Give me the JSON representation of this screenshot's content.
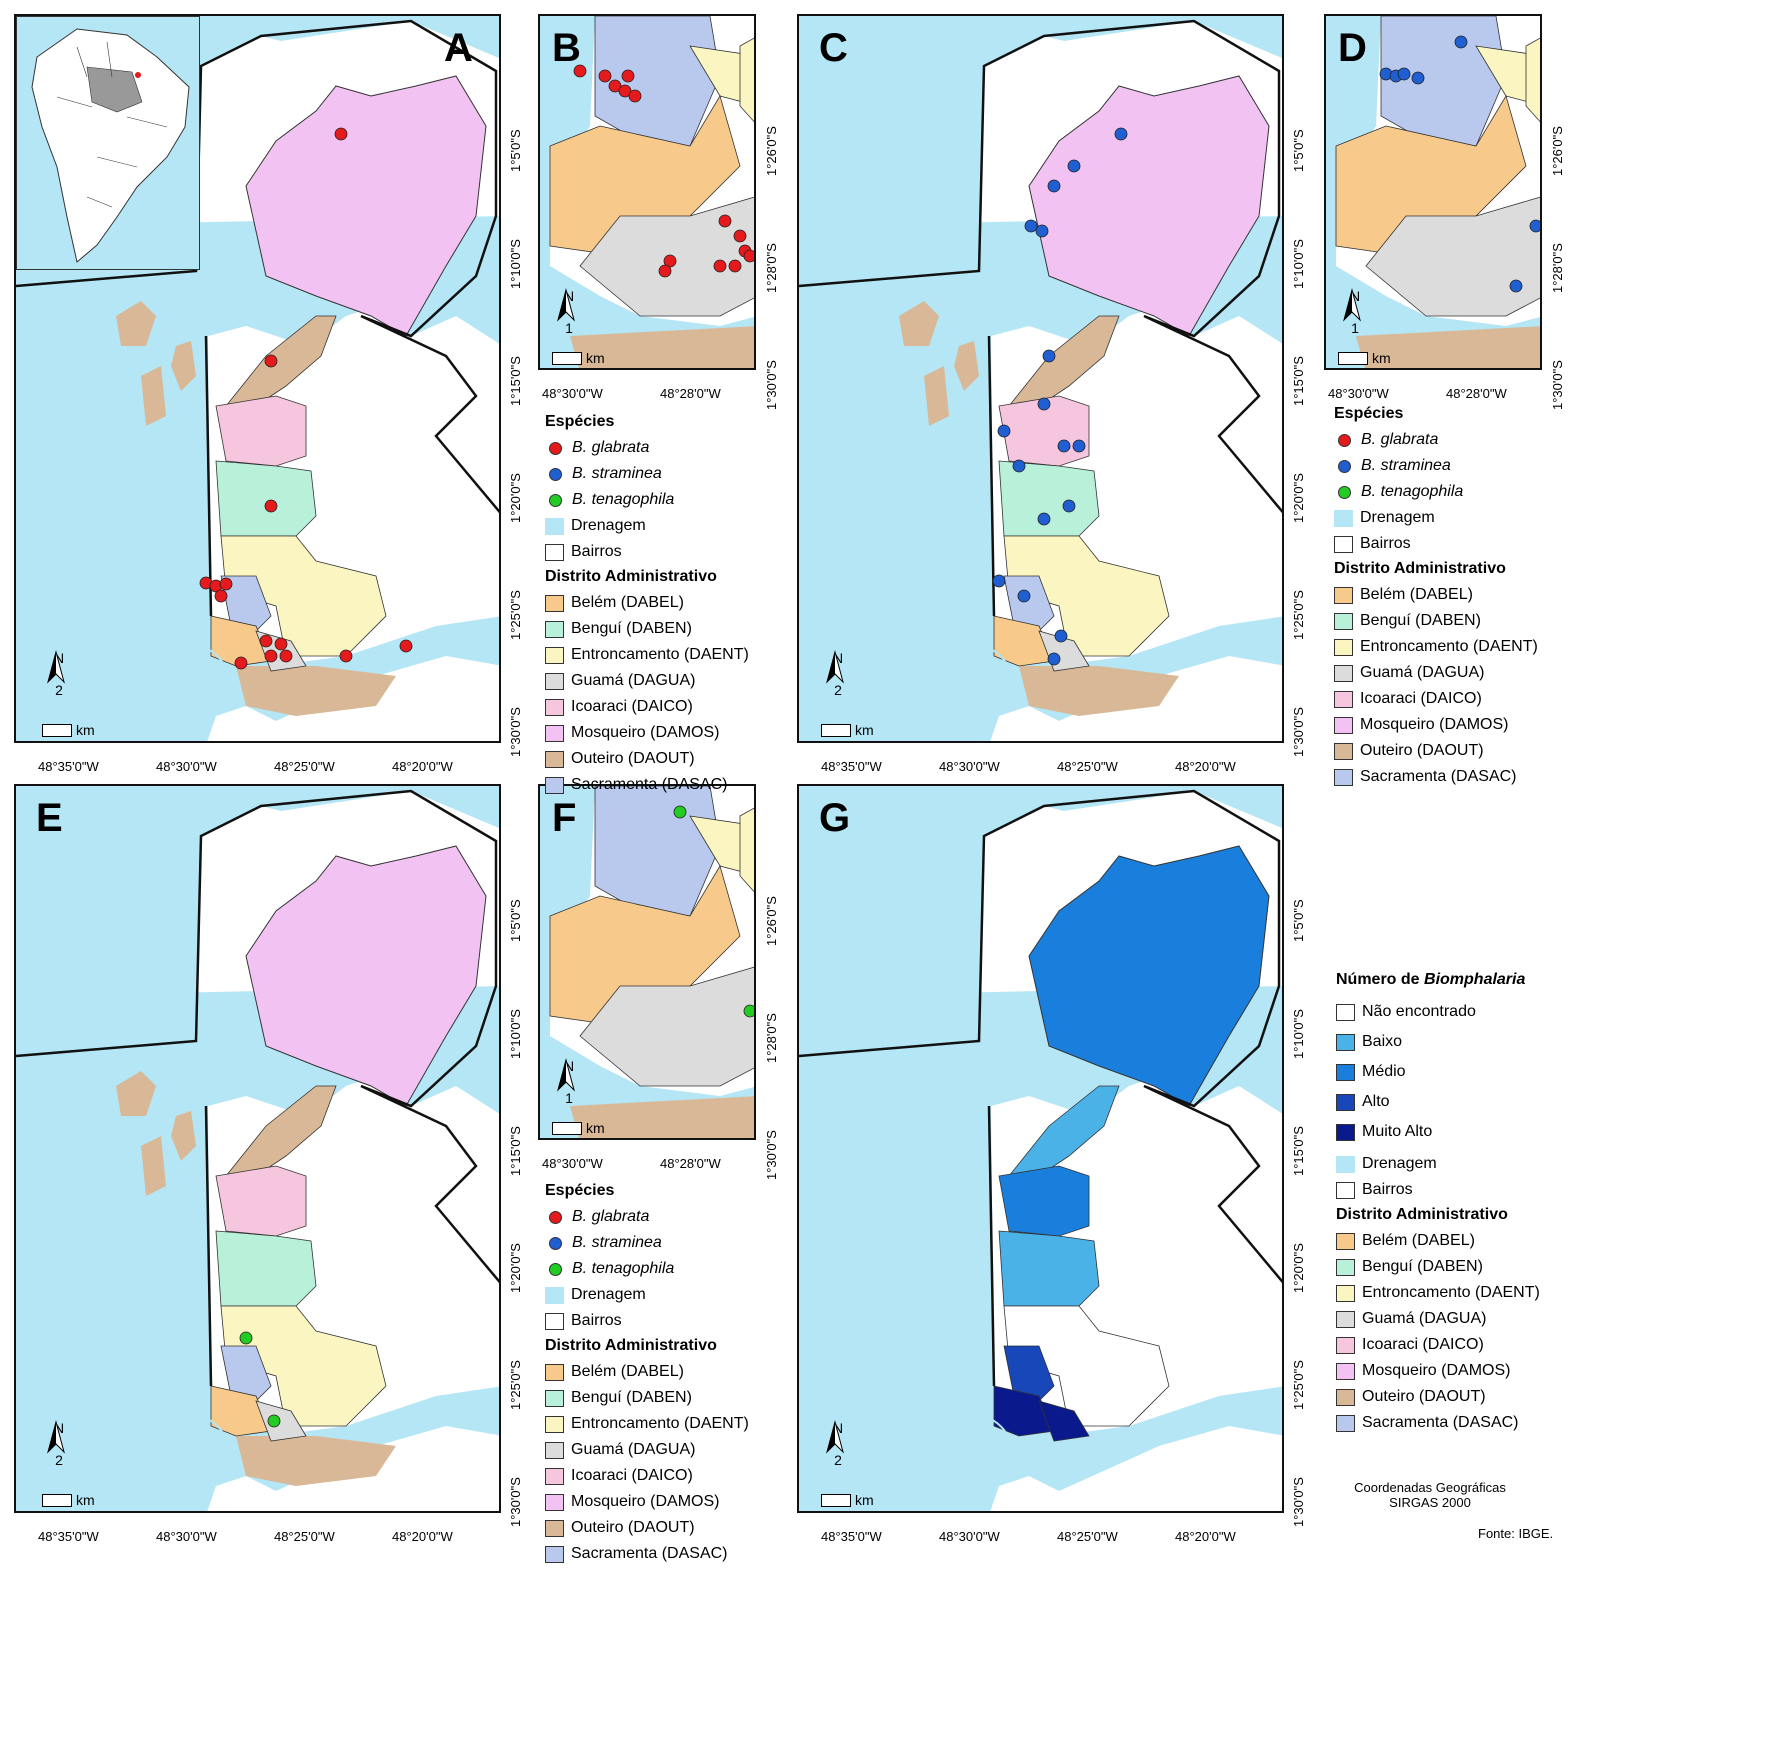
{
  "panels": {
    "A": "A",
    "B": "B",
    "C": "C",
    "D": "D",
    "E": "E",
    "F": "F",
    "G": "G"
  },
  "ticks": {
    "large_lon": [
      "48°35'0\"W",
      "48°30'0\"W",
      "48°25'0\"W",
      "48°20'0\"W"
    ],
    "large_lat": [
      "1°5'0\"S",
      "1°10'0\"S",
      "1°15'0\"S",
      "1°20'0\"S",
      "1°25'0\"S",
      "1°30'0\"S"
    ],
    "small_lon": [
      "48°30'0\"W",
      "48°28'0\"W"
    ],
    "small_lat": [
      "1°26'0\"S",
      "1°28'0\"S",
      "1°30'0\"S"
    ]
  },
  "north": {
    "label": "N",
    "scale_large": "2",
    "scale_small": "1",
    "km": "km"
  },
  "legend_species": {
    "title": "Espécies",
    "items": [
      {
        "genus": "B.",
        "epithet": "glabrata",
        "color": "#e41a1c"
      },
      {
        "genus": "B.",
        "epithet": "straminea",
        "color": "#1f5fd1"
      },
      {
        "genus": "B.",
        "epithet": "tenagophila",
        "color": "#22cc22"
      }
    ],
    "drenagem": "Drenagem",
    "bairros": "Bairros"
  },
  "legend_districts": {
    "title": "Distrito Administrativo",
    "items": [
      {
        "label": "Belém (DABEL)",
        "color": "#f7c98a"
      },
      {
        "label": "Benguí (DABEN)",
        "color": "#b8f0d9"
      },
      {
        "label": "Entroncamento (DAENT)",
        "color": "#fbf5c2"
      },
      {
        "label": "Guamá (DAGUA)",
        "color": "#dcdcdc"
      },
      {
        "label": "Icoaraci (DAICO)",
        "color": "#f6c6de"
      },
      {
        "label": "Mosqueiro (DAMOS)",
        "color": "#f2c3f2"
      },
      {
        "label": "Outeiro (DAOUT)",
        "color": "#d8b896"
      },
      {
        "label": "Sacramenta (DASAC)",
        "color": "#b9c9ee"
      }
    ]
  },
  "legend_count": {
    "title_prefix": "Número de ",
    "title_italic": "Biomphalaria",
    "items": [
      {
        "label": "Não encontrado",
        "color": "#ffffff"
      },
      {
        "label": "Baixo",
        "color": "#4bb2e8"
      },
      {
        "label": "Médio",
        "color": "#1a7fdc"
      },
      {
        "label": "Alto",
        "color": "#1747b8"
      },
      {
        "label": "Muito Alto",
        "color": "#0a1a8c"
      }
    ]
  },
  "colors": {
    "water": "#b5e6f5",
    "land": "#ffffff"
  },
  "notes": {
    "coords_line1": "Coordenadas Geográficas",
    "coords_line2": "SIRGAS 2000",
    "fonte": "Fonte: IBGE."
  }
}
